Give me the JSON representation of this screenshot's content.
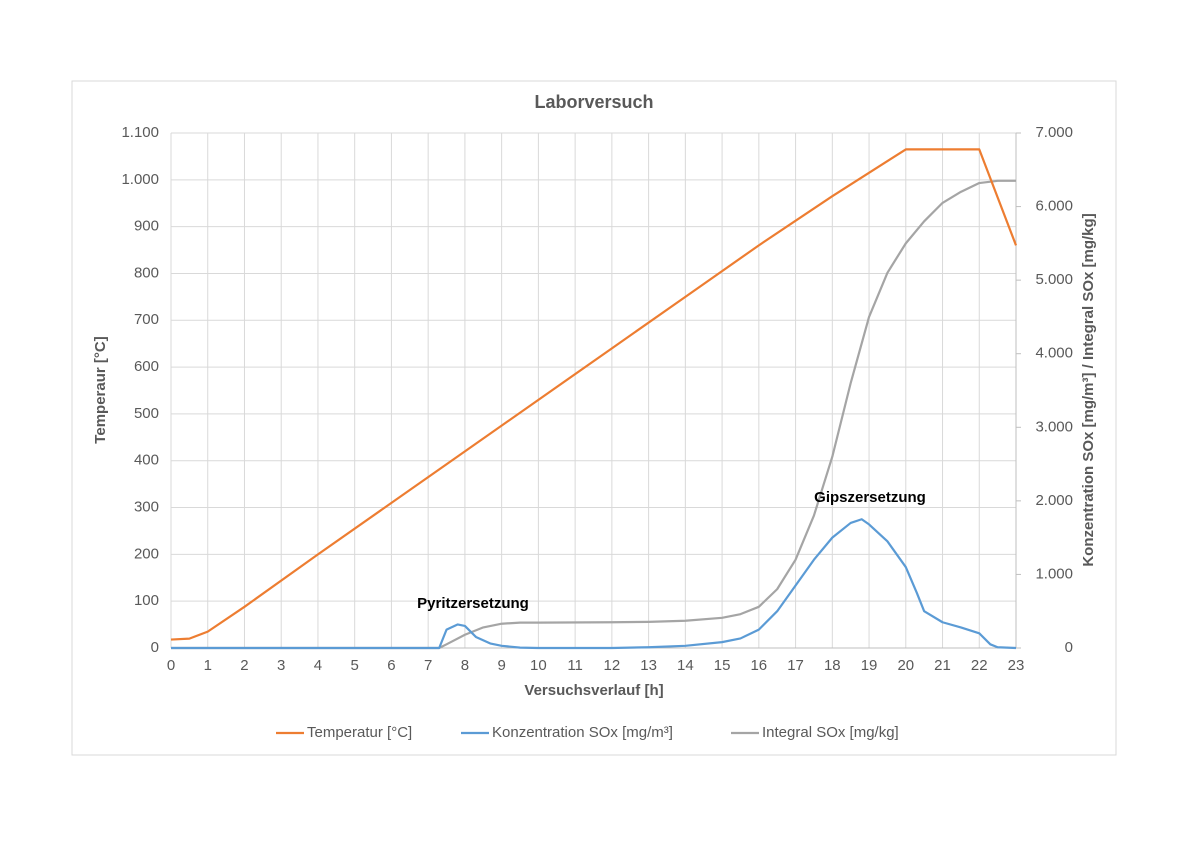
{
  "chart_data": {
    "type": "line",
    "title": "Laborversuch",
    "xlabel": "Versuchsverlauf [h]",
    "ylabel": "Temperaur [°C]",
    "y2label": "Konzentration SOx [mg/m³] / Integral SOx [mg/kg]",
    "xlim": [
      0,
      23
    ],
    "xticks": [
      0,
      1,
      2,
      3,
      4,
      5,
      6,
      7,
      8,
      9,
      10,
      11,
      12,
      13,
      14,
      15,
      16,
      17,
      18,
      19,
      20,
      21,
      22,
      23
    ],
    "ylim": [
      0,
      1100
    ],
    "yticks": [
      0,
      100,
      200,
      300,
      400,
      500,
      600,
      700,
      800,
      900,
      {
        "value": 1000,
        "label": "1.000"
      },
      {
        "value": 1100,
        "label": "1.100"
      }
    ],
    "y2lim": [
      0,
      7000
    ],
    "y2ticks": [
      0,
      {
        "value": 1000,
        "label": "1.000"
      },
      {
        "value": 2000,
        "label": "2.000"
      },
      {
        "value": 3000,
        "label": "3.000"
      },
      {
        "value": 4000,
        "label": "4.000"
      },
      {
        "value": 5000,
        "label": "5.000"
      },
      {
        "value": 6000,
        "label": "6.000"
      },
      {
        "value": 7000,
        "label": "7.000"
      }
    ],
    "grid": true,
    "legend": "bottom",
    "annotations": [
      "Pyritzersetzung",
      "Gipszersetzung"
    ],
    "series": [
      {
        "name": "Temperatur [°C]",
        "color": "#ed7d31",
        "x": [
          0,
          0.5,
          1,
          2,
          4,
          6,
          8,
          10,
          12,
          14,
          16,
          18,
          20,
          21,
          22,
          23
        ],
        "values": [
          18,
          20,
          35,
          88,
          200,
          310,
          420,
          530,
          640,
          750,
          860,
          965,
          1065,
          1065,
          1065,
          860
        ]
      },
      {
        "name": "Konzentration SOx [mg/m³]",
        "color": "#5b9bd5",
        "axis": "y2",
        "x": [
          0,
          7,
          7.3,
          7.5,
          7.8,
          8,
          8.3,
          8.7,
          9,
          9.5,
          10,
          12,
          13,
          14,
          15,
          15.5,
          16,
          16.5,
          17,
          17.5,
          18,
          18.5,
          18.8,
          19,
          19.5,
          20,
          20.3,
          20.5,
          21,
          21.5,
          22,
          22.3,
          22.5,
          23
        ],
        "values": [
          0,
          0,
          0,
          250,
          320,
          300,
          150,
          60,
          30,
          5,
          0,
          0,
          10,
          30,
          80,
          130,
          250,
          500,
          850,
          1200,
          1500,
          1700,
          1750,
          1680,
          1450,
          1100,
          750,
          500,
          350,
          280,
          200,
          50,
          10,
          0
        ]
      },
      {
        "name": "Integral SOx [mg/kg]",
        "color": "#a5a5a5",
        "axis": "y2",
        "x": [
          0,
          7.3,
          7.5,
          8,
          8.5,
          9,
          9.5,
          10,
          12,
          13,
          14,
          15,
          15.5,
          16,
          16.5,
          17,
          17.5,
          18,
          18.5,
          19,
          19.5,
          20,
          20.5,
          21,
          21.5,
          22,
          22.5,
          23
        ],
        "values": [
          0,
          0,
          50,
          180,
          280,
          330,
          345,
          345,
          350,
          355,
          370,
          410,
          460,
          560,
          800,
          1200,
          1800,
          2600,
          3600,
          4500,
          5100,
          5500,
          5800,
          6050,
          6200,
          6320,
          6350,
          6350
        ]
      }
    ]
  }
}
